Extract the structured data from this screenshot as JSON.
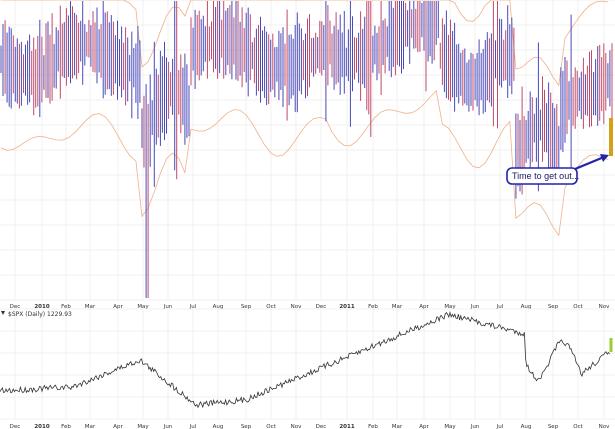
{
  "chart_data": [
    {
      "type": "bar",
      "title": "",
      "xlabel": "",
      "ylabel": "",
      "grid": true,
      "legend": "none",
      "x_tick_labels": [
        "Dec",
        "2010",
        "Feb",
        "Mar",
        "Apr",
        "May",
        "Jun",
        "Jul",
        "Aug",
        "Sep",
        "Oct",
        "Nov",
        "Dec",
        "2011",
        "Feb",
        "Mar",
        "Apr",
        "May",
        "Jun",
        "Jul",
        "Aug",
        "Sep",
        "Oct",
        "Nov"
      ],
      "bold_ticks": [
        "2010",
        "2011"
      ],
      "series": [
        {
          "color": "#4a4ab8",
          "style": "up-range-bars"
        },
        {
          "color": "#c04a6a",
          "style": "down-range-bars"
        },
        {
          "color": "#f0b08a",
          "style": "bands"
        }
      ],
      "annotation": {
        "text": "Time to get out...",
        "fill": "#ffffff",
        "border": "#2222aa",
        "arrow": "#2222aa",
        "highlight": "#d4a017"
      }
    },
    {
      "type": "line",
      "title": "$SPX (Daily) 1229.93",
      "symbol": "$SPX",
      "interval": "Daily",
      "last_value": 1229.93,
      "xlabel": "",
      "ylabel": "",
      "grid": true,
      "legend": "none",
      "x_tick_labels": [
        "Dec",
        "2010",
        "Feb",
        "Mar",
        "Apr",
        "May",
        "Jun",
        "Jul",
        "Aug",
        "Sep",
        "Oct",
        "Nov",
        "Dec",
        "2011",
        "Feb",
        "Mar",
        "Apr",
        "May",
        "Jun",
        "Jul",
        "Aug",
        "Sep",
        "Oct",
        "Nov"
      ],
      "bold_ticks": [
        "2010",
        "2011"
      ],
      "series": [
        {
          "color": "#333333",
          "style": "price-line"
        }
      ],
      "highlight_color": "#9acd32"
    }
  ]
}
